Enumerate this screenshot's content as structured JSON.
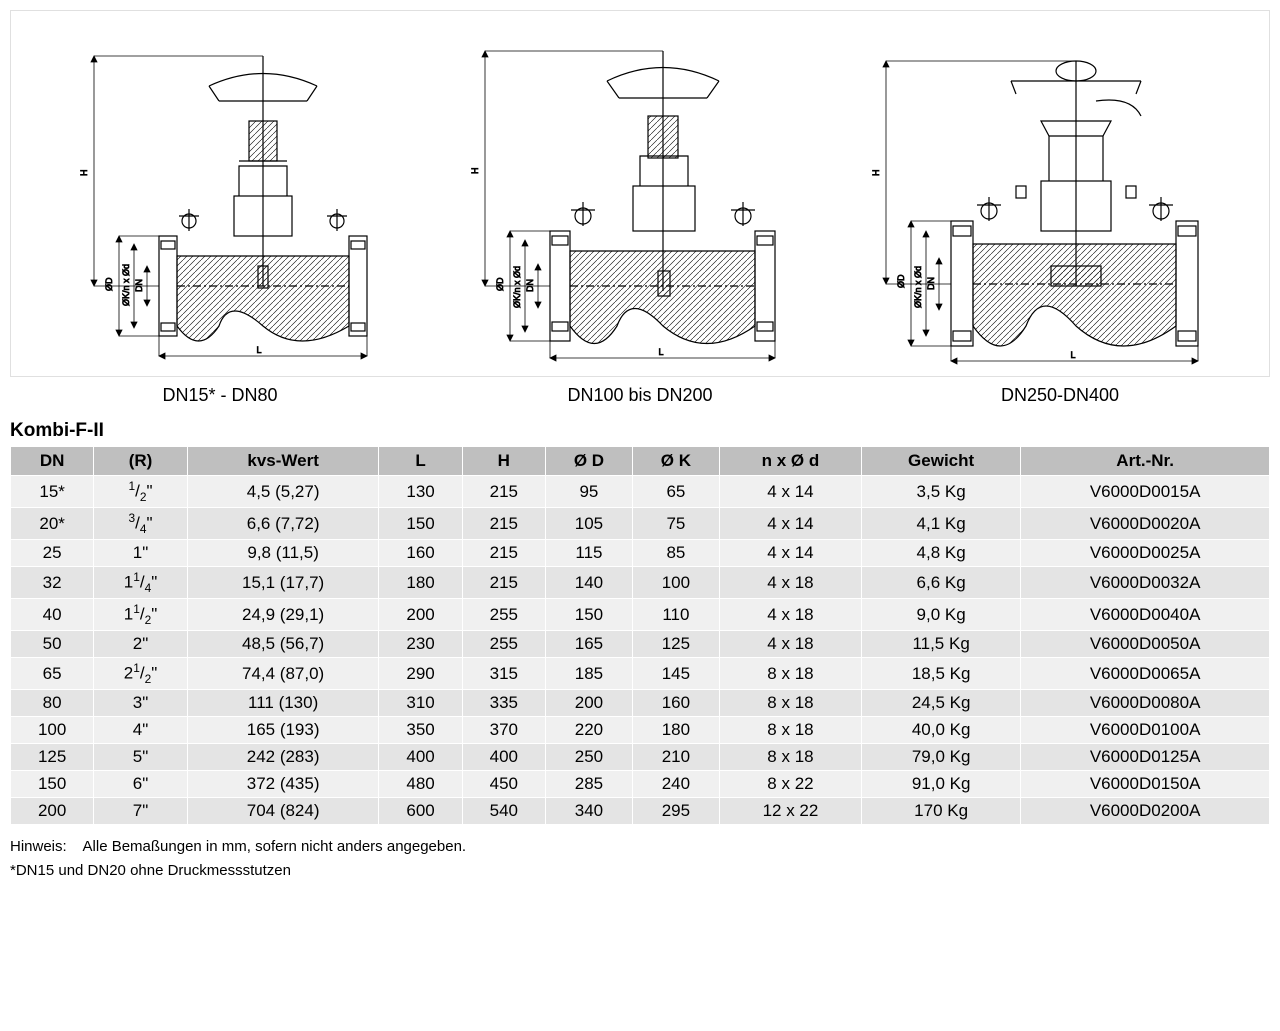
{
  "diagrams": {
    "captions": [
      "DN15* - DN80",
      "DN100 bis DN200",
      "DN250-DN400"
    ],
    "dim_labels": {
      "H": "H",
      "OD": "ØD",
      "OKnOd": "ØK/n x Ød",
      "DN": "DN",
      "L": "L"
    }
  },
  "table": {
    "title": "Kombi-F-II",
    "header_bg": "#bfbfbf",
    "row_odd_bg": "#f0f0f0",
    "row_even_bg": "#e4e4e4",
    "columns": [
      "DN",
      "(R)",
      "kvs-Wert",
      "L",
      "H",
      "Ø D",
      "Ø K",
      "n x Ø d",
      "Gewicht",
      "Art.-Nr."
    ],
    "rows": [
      {
        "dn": "15*",
        "r_html": "<span class='frac-sup'>1</span>/<span class='frac-sub'>2</span>\"",
        "kvs": "4,5 (5,27)",
        "L": "130",
        "H": "215",
        "OD": "95",
        "OK": "65",
        "nxd": "4 x 14",
        "w": "3,5 Kg",
        "art": "V6000D0015A"
      },
      {
        "dn": "20*",
        "r_html": "<span class='frac-sup'>3</span>/<span class='frac-sub'>4</span>\"",
        "kvs": "6,6 (7,72)",
        "L": "150",
        "H": "215",
        "OD": "105",
        "OK": "75",
        "nxd": "4 x 14",
        "w": "4,1 Kg",
        "art": "V6000D0020A"
      },
      {
        "dn": "25",
        "r_html": "1\"",
        "kvs": "9,8 (11,5)",
        "L": "160",
        "H": "215",
        "OD": "115",
        "OK": "85",
        "nxd": "4 x 14",
        "w": "4,8 Kg",
        "art": "V6000D0025A"
      },
      {
        "dn": "32",
        "r_html": "1<span class='frac-sup'>1</span>/<span class='frac-sub'>4</span>\"",
        "kvs": "15,1 (17,7)",
        "L": "180",
        "H": "215",
        "OD": "140",
        "OK": "100",
        "nxd": "4 x 18",
        "w": "6,6 Kg",
        "art": "V6000D0032A"
      },
      {
        "dn": "40",
        "r_html": "1<span class='frac-sup'>1</span>/<span class='frac-sub'>2</span>\"",
        "kvs": "24,9 (29,1)",
        "L": "200",
        "H": "255",
        "OD": "150",
        "OK": "110",
        "nxd": "4 x 18",
        "w": "9,0 Kg",
        "art": "V6000D0040A"
      },
      {
        "dn": "50",
        "r_html": "2\"",
        "kvs": "48,5 (56,7)",
        "L": "230",
        "H": "255",
        "OD": "165",
        "OK": "125",
        "nxd": "4 x 18",
        "w": "11,5 Kg",
        "art": "V6000D0050A"
      },
      {
        "dn": "65",
        "r_html": "2<span class='frac-sup'>1</span>/<span class='frac-sub'>2</span>\"",
        "kvs": "74,4 (87,0)",
        "L": "290",
        "H": "315",
        "OD": "185",
        "OK": "145",
        "nxd": "8 x 18",
        "w": "18,5 Kg",
        "art": "V6000D0065A"
      },
      {
        "dn": "80",
        "r_html": "3\"",
        "kvs": "111 (130)",
        "L": "310",
        "H": "335",
        "OD": "200",
        "OK": "160",
        "nxd": "8 x 18",
        "w": "24,5 Kg",
        "art": "V6000D0080A"
      },
      {
        "dn": "100",
        "r_html": "4\"",
        "kvs": "165 (193)",
        "L": "350",
        "H": "370",
        "OD": "220",
        "OK": "180",
        "nxd": "8 x 18",
        "w": "40,0 Kg",
        "art": "V6000D0100A"
      },
      {
        "dn": "125",
        "r_html": "5\"",
        "kvs": "242 (283)",
        "L": "400",
        "H": "400",
        "OD": "250",
        "OK": "210",
        "nxd": "8 x 18",
        "w": "79,0 Kg",
        "art": "V6000D0125A"
      },
      {
        "dn": "150",
        "r_html": "6\"",
        "kvs": "372 (435)",
        "L": "480",
        "H": "450",
        "OD": "285",
        "OK": "240",
        "nxd": "8 x 22",
        "w": "91,0 Kg",
        "art": "V6000D0150A"
      },
      {
        "dn": "200",
        "r_html": "7\"",
        "kvs": "704 (824)",
        "L": "600",
        "H": "540",
        "OD": "340",
        "OK": "295",
        "nxd": "12 x 22",
        "w": "170 Kg",
        "art": "V6000D0200A"
      }
    ]
  },
  "notes": {
    "line1_label": "Hinweis:",
    "line1_text": "Alle Bemaßungen in mm, sofern nicht anders angegeben.",
    "line2_text": "*DN15 und DN20 ohne Druckmessstutzen"
  }
}
